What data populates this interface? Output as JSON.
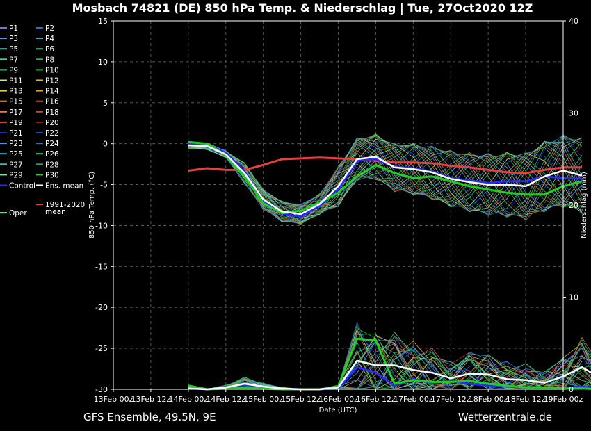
{
  "chart_data": {
    "type": "line",
    "title": "Mosbach 74821 (DE)  850 hPa Temp. & Niederschlag | Tue, 27Oct2020 12Z",
    "footer_left": "GFS Ensemble, 49.5N, 9E",
    "footer_right": "Wetterzentrale.de",
    "xlabel": "Date (UTC)",
    "ylabel_left": "850 hPa Temp. (°C)",
    "ylabel_right": "Niederschlag (mm)",
    "ylim_left": [
      -30,
      15
    ],
    "ylim_right": [
      0,
      40
    ],
    "yticks_left": [
      "15",
      "10",
      "5",
      "0",
      "-5",
      "-10",
      "-15",
      "-20",
      "-25",
      "-30"
    ],
    "yticks_right": [
      "40",
      "30",
      "20",
      "10",
      "0"
    ],
    "xticks": [
      "13Feb 00z",
      "13Feb 12z",
      "14Feb 00z",
      "14Feb 12z",
      "15Feb 00z",
      "15Feb 12z",
      "16Feb 00z",
      "16Feb 12z",
      "17Feb 00z",
      "17Feb 12z",
      "18Feb 00z",
      "18Feb 12z",
      "19Feb 00z"
    ],
    "x_step_hours": 6,
    "series_start_index": 4,
    "temperature_series": {
      "ens_mean": [
        -0.2,
        -0.3,
        -1.3,
        -3.6,
        -6.8,
        -8.3,
        -8.6,
        -7.4,
        -5.2,
        -1.9,
        -1.6,
        -2.9,
        -3.1,
        -3.5,
        -4.3,
        -4.7,
        -5.0,
        -5.0,
        -5.2,
        -4.0,
        -3.3,
        -3.9
      ],
      "control": [
        0.0,
        -0.1,
        -1.1,
        -3.4,
        -7.0,
        -8.6,
        -8.9,
        -7.6,
        -5.6,
        -2.1,
        -1.9,
        -2.8,
        -3.0,
        -3.4,
        -4.2,
        -4.5,
        -4.8,
        -4.6,
        -4.6,
        -4.0,
        -4.2,
        -4.3
      ],
      "oper": [
        0.2,
        0.0,
        -1.4,
        -4.0,
        -7.3,
        -8.5,
        -8.2,
        -7.2,
        -6.0,
        -4.0,
        -2.6,
        -3.6,
        -4.2,
        -4.0,
        -4.6,
        -5.2,
        -5.6,
        -6.0,
        -6.2,
        -6.2,
        -5.2,
        -4.6
      ],
      "climate_1991_2020": [
        -3.3,
        -3.0,
        -3.2,
        -3.2,
        -2.6,
        -1.9,
        -1.8,
        -1.7,
        -1.8,
        -1.9,
        -2.1,
        -2.3,
        -2.3,
        -2.4,
        -2.7,
        -2.9,
        -3.2,
        -3.5,
        -3.6,
        -3.2,
        -2.9,
        -2.9
      ]
    },
    "precipitation_series": {
      "ens_mean": [
        0.1,
        0.0,
        0.2,
        0.6,
        0.3,
        0.1,
        0.0,
        0.0,
        0.2,
        3.1,
        2.6,
        2.6,
        2.1,
        1.8,
        1.2,
        1.7,
        1.6,
        1.1,
        1.0,
        0.7,
        1.4,
        2.4,
        1.2
      ],
      "control": [
        0.1,
        0.0,
        0.1,
        0.5,
        0.2,
        0.1,
        0.0,
        0.0,
        0.1,
        2.4,
        1.8,
        0.4,
        1.1,
        0.7,
        0.9,
        0.6,
        0.4,
        0.3,
        0.2,
        0.2,
        0.1,
        0.3,
        0.1
      ],
      "oper": [
        0.4,
        0.0,
        0.1,
        0.2,
        0.1,
        0.0,
        0.0,
        0.0,
        0.3,
        5.5,
        5.3,
        0.6,
        1.0,
        0.8,
        0.8,
        0.9,
        0.6,
        0.4,
        0.2,
        0.2,
        0.1,
        0.1,
        0.0
      ]
    },
    "legend": [
      {
        "label": "P1",
        "color": "#6f6fff"
      },
      {
        "label": "P2",
        "color": "#3b5fe0"
      },
      {
        "label": "P3",
        "color": "#5f8fff"
      },
      {
        "label": "P4",
        "color": "#3fa0d8"
      },
      {
        "label": "P5",
        "color": "#2fc0c0"
      },
      {
        "label": "P6",
        "color": "#20c890"
      },
      {
        "label": "P7",
        "color": "#30d8a8"
      },
      {
        "label": "P8",
        "color": "#2ea858"
      },
      {
        "label": "P9",
        "color": "#50e870"
      },
      {
        "label": "P10",
        "color": "#30c830"
      },
      {
        "label": "P11",
        "color": "#d8e868"
      },
      {
        "label": "P12",
        "color": "#d8b838"
      },
      {
        "label": "P13",
        "color": "#e8c850"
      },
      {
        "label": "P14",
        "color": "#e89828"
      },
      {
        "label": "P15",
        "color": "#f0a868"
      },
      {
        "label": "P16",
        "color": "#c86a28"
      },
      {
        "label": "P17",
        "color": "#e87848"
      },
      {
        "label": "P18",
        "color": "#c84838"
      },
      {
        "label": "P19",
        "color": "#e84848"
      },
      {
        "label": "P20",
        "color": "#a82020"
      },
      {
        "label": "P21",
        "color": "#2020d8"
      },
      {
        "label": "P22",
        "color": "#2050c8"
      },
      {
        "label": "P23",
        "color": "#5090e8"
      },
      {
        "label": "P24",
        "color": "#3878b8"
      },
      {
        "label": "P25",
        "color": "#40b8c8"
      },
      {
        "label": "P26",
        "color": "#28d8a0"
      },
      {
        "label": "P27",
        "color": "#30c8b8"
      },
      {
        "label": "P28",
        "color": "#20a870"
      },
      {
        "label": "P29",
        "color": "#70f088"
      },
      {
        "label": "P30",
        "color": "#28d828"
      },
      {
        "label": "Control",
        "color": "#2828ff"
      },
      {
        "label": "Ens. mean",
        "color": "#ffffff"
      },
      {
        "label": "Oper",
        "color": "#40ff40"
      },
      {
        "label": "1991-2020 mean",
        "color": "#e84040"
      }
    ],
    "colors": {
      "background": "#000000",
      "grid": "#555555",
      "text": "#ffffff",
      "control": "#2828ff",
      "ens_mean": "#ffffff",
      "oper": "#20d020",
      "climate": "#e84040"
    }
  }
}
